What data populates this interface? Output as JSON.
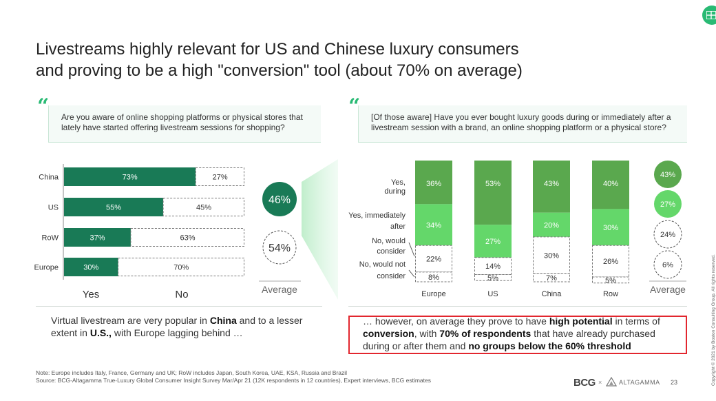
{
  "title_line1": "Livestreams highly relevant for US and Chinese luxury consumers",
  "title_line2": "and proving to be a high \"conversion\" tool (about 70% on average)",
  "quote_glyph": "“",
  "left_question": "Are you aware of online shopping platforms or physical stores that lately have started offering livestream sessions for shopping?",
  "right_question": "[Of those aware] Have you ever bought luxury goods during or immediately after a livestream session with a brand, an online shopping platform or a physical store?",
  "chart_data": [
    {
      "type": "bar",
      "orientation": "horizontal-stacked",
      "categories": [
        "China",
        "US",
        "RoW",
        "Europe"
      ],
      "series": [
        {
          "name": "Yes",
          "values": [
            73,
            55,
            37,
            30
          ],
          "labels": [
            "73%",
            "55%",
            "37%",
            "30%"
          ]
        },
        {
          "name": "No",
          "values": [
            27,
            45,
            63,
            70
          ],
          "labels": [
            "27%",
            "45%",
            "63%",
            "70%"
          ]
        }
      ],
      "legend": [
        "Yes",
        "No"
      ],
      "average": {
        "yes": "46%",
        "no": "54%",
        "label": "Average"
      }
    },
    {
      "type": "bar",
      "orientation": "vertical-stacked",
      "categories": [
        "Europe",
        "US",
        "China",
        "Row"
      ],
      "series": [
        {
          "name": "Yes, during",
          "values": [
            36,
            53,
            43,
            40
          ],
          "labels": [
            "36%",
            "53%",
            "43%",
            "40%"
          ]
        },
        {
          "name": "Yes, immediately after",
          "values": [
            34,
            27,
            20,
            30
          ],
          "labels": [
            "34%",
            "27%",
            "20%",
            "30%"
          ]
        },
        {
          "name": "No, would consider",
          "values": [
            22,
            14,
            30,
            26
          ],
          "labels": [
            "22%",
            "14%",
            "30%",
            "26%"
          ]
        },
        {
          "name": "No, would not consider",
          "values": [
            8,
            5,
            7,
            5
          ],
          "labels": [
            "8%",
            "5%",
            "7%",
            "5%"
          ]
        }
      ],
      "series_label_lines": [
        [
          "Yes,",
          "during"
        ],
        [
          "Yes, immediately",
          "after"
        ],
        [
          "No, would",
          "consider"
        ],
        [
          "No, would not",
          "consider"
        ]
      ],
      "average": {
        "values": [
          "43%",
          "27%",
          "24%",
          "6%"
        ],
        "label": "Average"
      }
    }
  ],
  "bottom_left": {
    "p1": "Virtual livestream are very popular in ",
    "b1": "China",
    "p2": " and to a lesser extent in ",
    "b2": "U.S.,",
    "p3": " with Europe lagging behind …"
  },
  "bottom_right": {
    "p1": "… however, on average they prove to have ",
    "b1": "high potential",
    "p2": " in terms of ",
    "b2": "conversion",
    "p3": ", with ",
    "b3": "70% of respondents",
    "p4": " that have already purchased during or after them and ",
    "b4": "no groups below the 60% threshold"
  },
  "note_line1": "Note: Europe includes Italy, France, Germany and UK; RoW includes Japan, South Korea, UAE, KSA, Russia and Brazil",
  "note_line2": "Source: BCG-Altagamma True-Luxury Global Consumer Insight Survey Mar/Apr 21 (12K respondents in 12 countries), Expert interviews, BCG estimates",
  "logo_bcg": "BCG",
  "logo_x": "×",
  "logo_altagamma": "ALTAGAMMA",
  "page_number": "23",
  "copyright": "Copyright © 2021 by Boston Consulting Group. All rights reserved.",
  "colors": {
    "dark_green": "#197a56",
    "mid_green": "#5aa84e",
    "light_green": "#64d76a",
    "accent": "#29ba74",
    "red": "#e2262e"
  }
}
